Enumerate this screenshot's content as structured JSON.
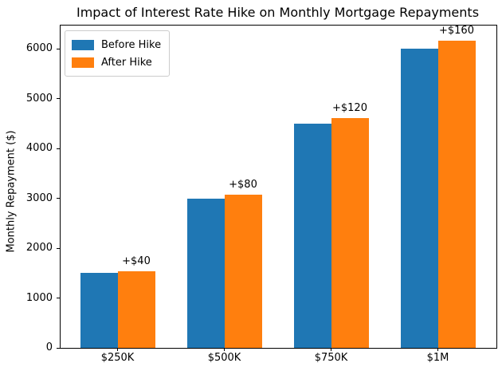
{
  "title": "Impact of Interest Rate Hike on Monthly Mortgage Repayments",
  "chart_data": {
    "type": "bar",
    "title": "Impact of Interest Rate Hike on Monthly Mortgage Repayments",
    "xlabel": "",
    "ylabel": "Monthly Repayment ($)",
    "categories": [
      "$250K",
      "$500K",
      "$750K",
      "$1M"
    ],
    "series": [
      {
        "name": "Before Hike",
        "color": "#1f77b4",
        "values": [
          1500,
          3000,
          4500,
          6000
        ]
      },
      {
        "name": "After Hike",
        "color": "#ff7f0e",
        "values": [
          1540,
          3080,
          4620,
          6160
        ]
      }
    ],
    "annotations": [
      {
        "text": "+$40",
        "category": "$250K"
      },
      {
        "text": "+$80",
        "category": "$500K"
      },
      {
        "text": "+$120",
        "category": "$750K"
      },
      {
        "text": "+$160",
        "category": "$1M"
      }
    ],
    "ylim": [
      0,
      6470
    ],
    "yticks": [
      0,
      1000,
      2000,
      3000,
      4000,
      5000,
      6000
    ],
    "legend_position": "upper left",
    "grid": false,
    "bar_edge_color": "none",
    "text_color": "#000000"
  }
}
